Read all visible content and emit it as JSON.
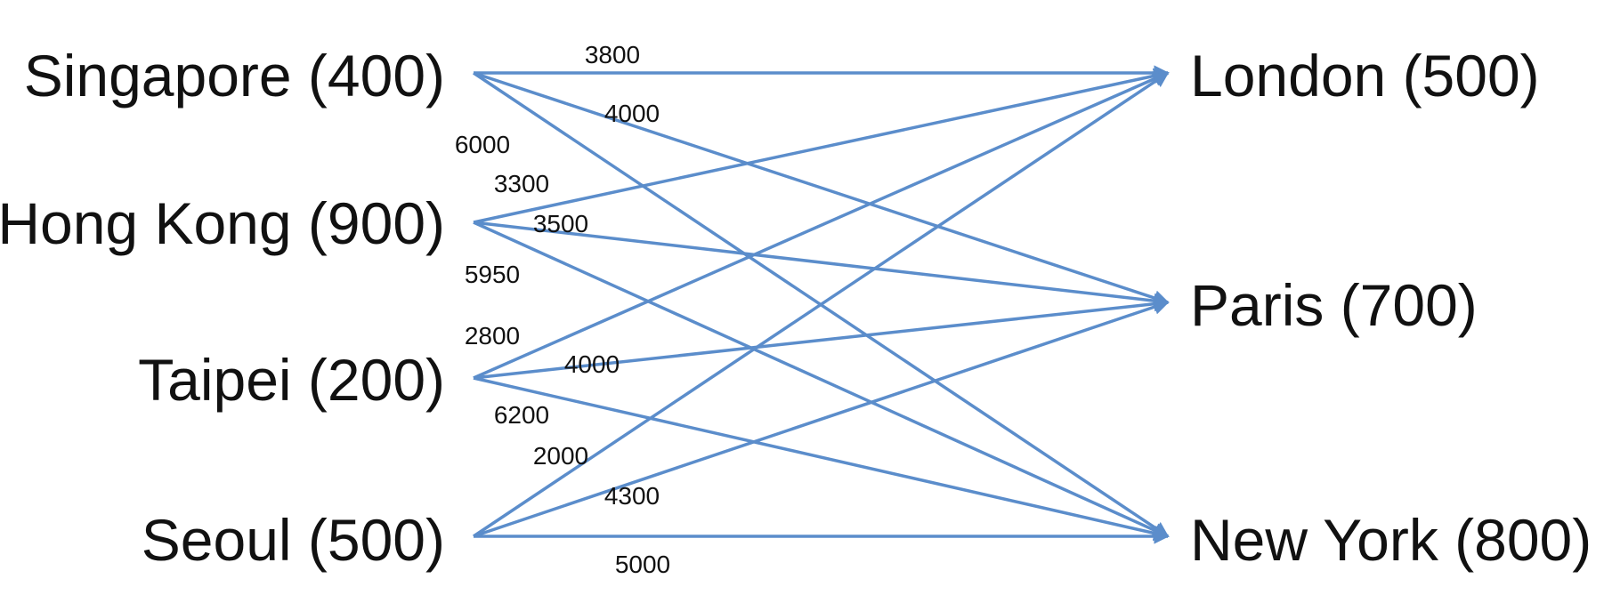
{
  "colors": {
    "edge": "#5b8dcb",
    "text": "#111111",
    "background": "#ffffff"
  },
  "sources": [
    {
      "id": "singapore",
      "label": "Singapore (400)"
    },
    {
      "id": "hongkong",
      "label": "Hong Kong (900)"
    },
    {
      "id": "taipei",
      "label": "Taipei (200)"
    },
    {
      "id": "seoul",
      "label": "Seoul (500)"
    }
  ],
  "destinations": [
    {
      "id": "london",
      "label": "London (500)"
    },
    {
      "id": "paris",
      "label": "Paris (700)"
    },
    {
      "id": "newyork",
      "label": "New York (800)"
    }
  ],
  "edges": [
    {
      "from": "singapore",
      "to": "london",
      "label": "3800"
    },
    {
      "from": "singapore",
      "to": "paris",
      "label": "4000"
    },
    {
      "from": "singapore",
      "to": "newyork",
      "label": "6000"
    },
    {
      "from": "hongkong",
      "to": "london",
      "label": "3300"
    },
    {
      "from": "hongkong",
      "to": "paris",
      "label": "3500"
    },
    {
      "from": "hongkong",
      "to": "newyork",
      "label": "5950"
    },
    {
      "from": "taipei",
      "to": "london",
      "label": "2800"
    },
    {
      "from": "taipei",
      "to": "paris",
      "label": "4000"
    },
    {
      "from": "taipei",
      "to": "newyork",
      "label": "6200"
    },
    {
      "from": "seoul",
      "to": "london",
      "label": "2000"
    },
    {
      "from": "seoul",
      "to": "paris",
      "label": "4300"
    },
    {
      "from": "seoul",
      "to": "newyork",
      "label": "5000"
    }
  ]
}
